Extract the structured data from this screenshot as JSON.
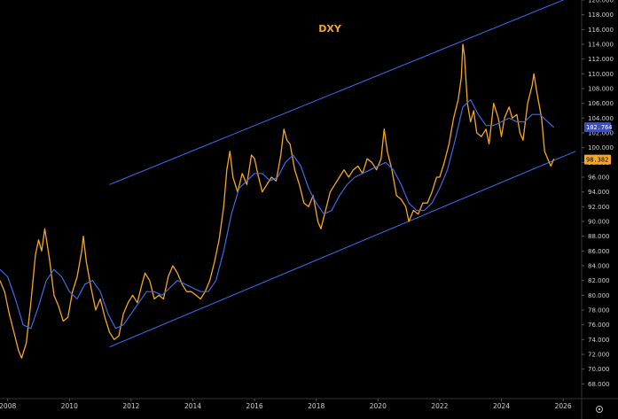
{
  "chart_data": {
    "type": "line",
    "title": "DXY",
    "xlabel": "",
    "ylabel": "",
    "xlim": [
      2007.75,
      2026.6
    ],
    "ylim": [
      66.0,
      120.0
    ],
    "x_ticks": [
      2008,
      2010,
      2012,
      2014,
      2016,
      2018,
      2020,
      2022,
      2024,
      2026
    ],
    "x_tick_labels": [
      "2008",
      "2010",
      "2012",
      "2014",
      "2016",
      "2018",
      "2020",
      "2022",
      "2024",
      "2026"
    ],
    "y_ticks": [
      68,
      70,
      72,
      74,
      76,
      78,
      80,
      82,
      84,
      86,
      88,
      90,
      92,
      94,
      96,
      98,
      100,
      102,
      104,
      106,
      108,
      110,
      112,
      114,
      116,
      118,
      120
    ],
    "y_tick_labels": [
      "68.000",
      "70.000",
      "72.000",
      "74.000",
      "76.000",
      "78.000",
      "80.000",
      "82.000",
      "84.000",
      "86.000",
      "88.000",
      "90.000",
      "92.000",
      "94.000",
      "96.000",
      "98.000",
      "100.000",
      "102.000",
      "104.000",
      "106.000",
      "108.000",
      "110.000",
      "112.000",
      "114.000",
      "116.000",
      "118.000",
      "120.000"
    ],
    "grid": false,
    "series": [
      {
        "color": "#f5a623",
        "points": [
          [
            2007.75,
            82.0
          ],
          [
            2007.9,
            80.5
          ],
          [
            2008.05,
            77.5
          ],
          [
            2008.2,
            75.0
          ],
          [
            2008.35,
            72.5
          ],
          [
            2008.45,
            71.5
          ],
          [
            2008.6,
            73.5
          ],
          [
            2008.75,
            79.0
          ],
          [
            2008.9,
            85.5
          ],
          [
            2009.0,
            87.5
          ],
          [
            2009.1,
            86.0
          ],
          [
            2009.2,
            89.0
          ],
          [
            2009.35,
            85.0
          ],
          [
            2009.5,
            80.0
          ],
          [
            2009.65,
            78.5
          ],
          [
            2009.8,
            76.5
          ],
          [
            2009.95,
            77.0
          ],
          [
            2010.1,
            80.5
          ],
          [
            2010.25,
            82.5
          ],
          [
            2010.4,
            86.0
          ],
          [
            2010.45,
            88.0
          ],
          [
            2010.55,
            84.5
          ],
          [
            2010.7,
            81.0
          ],
          [
            2010.85,
            78.0
          ],
          [
            2011.0,
            79.5
          ],
          [
            2011.15,
            77.0
          ],
          [
            2011.3,
            75.0
          ],
          [
            2011.45,
            74.0
          ],
          [
            2011.6,
            74.5
          ],
          [
            2011.75,
            77.5
          ],
          [
            2011.9,
            79.0
          ],
          [
            2012.05,
            80.0
          ],
          [
            2012.2,
            79.0
          ],
          [
            2012.35,
            81.5
          ],
          [
            2012.45,
            83.0
          ],
          [
            2012.6,
            82.0
          ],
          [
            2012.75,
            79.5
          ],
          [
            2012.9,
            80.0
          ],
          [
            2013.05,
            79.5
          ],
          [
            2013.2,
            82.5
          ],
          [
            2013.35,
            84.0
          ],
          [
            2013.5,
            83.0
          ],
          [
            2013.65,
            81.5
          ],
          [
            2013.8,
            80.5
          ],
          [
            2013.95,
            80.5
          ],
          [
            2014.1,
            80.0
          ],
          [
            2014.25,
            79.5
          ],
          [
            2014.4,
            80.5
          ],
          [
            2014.55,
            82.0
          ],
          [
            2014.7,
            84.5
          ],
          [
            2014.85,
            87.5
          ],
          [
            2015.0,
            92.0
          ],
          [
            2015.1,
            97.0
          ],
          [
            2015.2,
            99.5
          ],
          [
            2015.3,
            96.0
          ],
          [
            2015.45,
            94.0
          ],
          [
            2015.6,
            96.5
          ],
          [
            2015.75,
            95.0
          ],
          [
            2015.9,
            99.0
          ],
          [
            2016.0,
            98.5
          ],
          [
            2016.1,
            96.5
          ],
          [
            2016.25,
            94.0
          ],
          [
            2016.4,
            95.0
          ],
          [
            2016.55,
            96.0
          ],
          [
            2016.7,
            95.5
          ],
          [
            2016.85,
            99.0
          ],
          [
            2016.95,
            102.5
          ],
          [
            2017.05,
            101.0
          ],
          [
            2017.15,
            100.5
          ],
          [
            2017.3,
            97.0
          ],
          [
            2017.45,
            95.0
          ],
          [
            2017.6,
            92.5
          ],
          [
            2017.75,
            92.0
          ],
          [
            2017.9,
            93.5
          ],
          [
            2018.05,
            90.0
          ],
          [
            2018.15,
            89.0
          ],
          [
            2018.3,
            91.5
          ],
          [
            2018.45,
            94.0
          ],
          [
            2018.6,
            95.0
          ],
          [
            2018.75,
            96.0
          ],
          [
            2018.9,
            97.0
          ],
          [
            2019.05,
            96.0
          ],
          [
            2019.2,
            97.0
          ],
          [
            2019.35,
            97.5
          ],
          [
            2019.5,
            96.5
          ],
          [
            2019.65,
            98.5
          ],
          [
            2019.8,
            98.0
          ],
          [
            2019.95,
            97.0
          ],
          [
            2020.1,
            98.5
          ],
          [
            2020.2,
            102.5
          ],
          [
            2020.3,
            99.5
          ],
          [
            2020.45,
            97.0
          ],
          [
            2020.6,
            93.5
          ],
          [
            2020.75,
            93.0
          ],
          [
            2020.9,
            92.0
          ],
          [
            2021.0,
            90.0
          ],
          [
            2021.15,
            91.5
          ],
          [
            2021.3,
            91.0
          ],
          [
            2021.45,
            92.5
          ],
          [
            2021.6,
            92.5
          ],
          [
            2021.75,
            94.0
          ],
          [
            2021.9,
            96.0
          ],
          [
            2022.0,
            96.0
          ],
          [
            2022.15,
            98.0
          ],
          [
            2022.3,
            100.5
          ],
          [
            2022.45,
            104.0
          ],
          [
            2022.6,
            106.5
          ],
          [
            2022.7,
            109.5
          ],
          [
            2022.75,
            114.0
          ],
          [
            2022.8,
            112.5
          ],
          [
            2022.9,
            106.0
          ],
          [
            2023.0,
            103.5
          ],
          [
            2023.1,
            105.0
          ],
          [
            2023.2,
            102.0
          ],
          [
            2023.35,
            101.5
          ],
          [
            2023.5,
            102.5
          ],
          [
            2023.6,
            100.5
          ],
          [
            2023.75,
            106.0
          ],
          [
            2023.9,
            104.0
          ],
          [
            2024.0,
            101.5
          ],
          [
            2024.1,
            104.0
          ],
          [
            2024.25,
            105.5
          ],
          [
            2024.35,
            104.0
          ],
          [
            2024.5,
            104.5
          ],
          [
            2024.6,
            102.0
          ],
          [
            2024.7,
            101.0
          ],
          [
            2024.85,
            106.0
          ],
          [
            2025.0,
            108.5
          ],
          [
            2025.05,
            110.0
          ],
          [
            2025.15,
            107.5
          ],
          [
            2025.3,
            104.0
          ],
          [
            2025.4,
            99.5
          ],
          [
            2025.5,
            98.5
          ],
          [
            2025.6,
            97.5
          ],
          [
            2025.7,
            98.5
          ]
        ]
      },
      {
        "color": "#4169e1",
        "points": [
          [
            2007.75,
            83.5
          ],
          [
            2008.0,
            82.5
          ],
          [
            2008.25,
            79.5
          ],
          [
            2008.5,
            76.0
          ],
          [
            2008.75,
            75.5
          ],
          [
            2009.0,
            78.5
          ],
          [
            2009.25,
            82.0
          ],
          [
            2009.5,
            83.5
          ],
          [
            2009.75,
            82.5
          ],
          [
            2010.0,
            80.5
          ],
          [
            2010.25,
            79.5
          ],
          [
            2010.5,
            81.5
          ],
          [
            2010.75,
            82.0
          ],
          [
            2011.0,
            80.5
          ],
          [
            2011.25,
            77.5
          ],
          [
            2011.5,
            75.5
          ],
          [
            2011.75,
            76.0
          ],
          [
            2012.0,
            77.5
          ],
          [
            2012.25,
            79.0
          ],
          [
            2012.5,
            80.5
          ],
          [
            2012.75,
            80.5
          ],
          [
            2013.0,
            80.0
          ],
          [
            2013.25,
            81.0
          ],
          [
            2013.5,
            82.0
          ],
          [
            2013.75,
            81.5
          ],
          [
            2014.0,
            81.0
          ],
          [
            2014.25,
            80.5
          ],
          [
            2014.5,
            80.5
          ],
          [
            2014.75,
            82.0
          ],
          [
            2015.0,
            86.0
          ],
          [
            2015.25,
            91.0
          ],
          [
            2015.5,
            94.5
          ],
          [
            2015.75,
            95.5
          ],
          [
            2016.0,
            96.5
          ],
          [
            2016.25,
            96.5
          ],
          [
            2016.5,
            95.5
          ],
          [
            2016.75,
            96.0
          ],
          [
            2017.0,
            98.0
          ],
          [
            2017.25,
            99.0
          ],
          [
            2017.5,
            97.5
          ],
          [
            2017.75,
            94.5
          ],
          [
            2018.0,
            92.5
          ],
          [
            2018.25,
            91.0
          ],
          [
            2018.5,
            91.5
          ],
          [
            2018.75,
            93.5
          ],
          [
            2019.0,
            95.0
          ],
          [
            2019.25,
            96.0
          ],
          [
            2019.5,
            96.5
          ],
          [
            2019.75,
            97.0
          ],
          [
            2020.0,
            97.5
          ],
          [
            2020.25,
            98.0
          ],
          [
            2020.5,
            97.0
          ],
          [
            2020.75,
            95.0
          ],
          [
            2021.0,
            92.5
          ],
          [
            2021.25,
            91.5
          ],
          [
            2021.5,
            91.5
          ],
          [
            2021.75,
            92.5
          ],
          [
            2022.0,
            94.5
          ],
          [
            2022.25,
            97.0
          ],
          [
            2022.5,
            101.0
          ],
          [
            2022.75,
            105.5
          ],
          [
            2023.0,
            106.5
          ],
          [
            2023.25,
            104.5
          ],
          [
            2023.5,
            103.0
          ],
          [
            2023.75,
            103.0
          ],
          [
            2024.0,
            103.5
          ],
          [
            2024.25,
            104.0
          ],
          [
            2024.5,
            103.5
          ],
          [
            2024.75,
            103.5
          ],
          [
            2025.0,
            104.5
          ],
          [
            2025.25,
            104.5
          ],
          [
            2025.5,
            103.5
          ],
          [
            2025.7,
            102.76
          ]
        ]
      }
    ],
    "channel": {
      "color": "#3b6cf0",
      "upper": [
        [
          2011.3,
          95.0
        ],
        [
          2026.3,
          120.5
        ]
      ],
      "lower": [
        [
          2011.3,
          73.0
        ],
        [
          2026.4,
          99.5
        ]
      ]
    },
    "last_values": [
      {
        "label": "102.764",
        "value": 102.764,
        "background": "#3f51b5",
        "text_color": "#ffffff"
      },
      {
        "label": "98.382",
        "value": 98.382,
        "background": "#f5a623",
        "text_color": "#000000"
      }
    ]
  },
  "settings_icon": "gear-icon"
}
